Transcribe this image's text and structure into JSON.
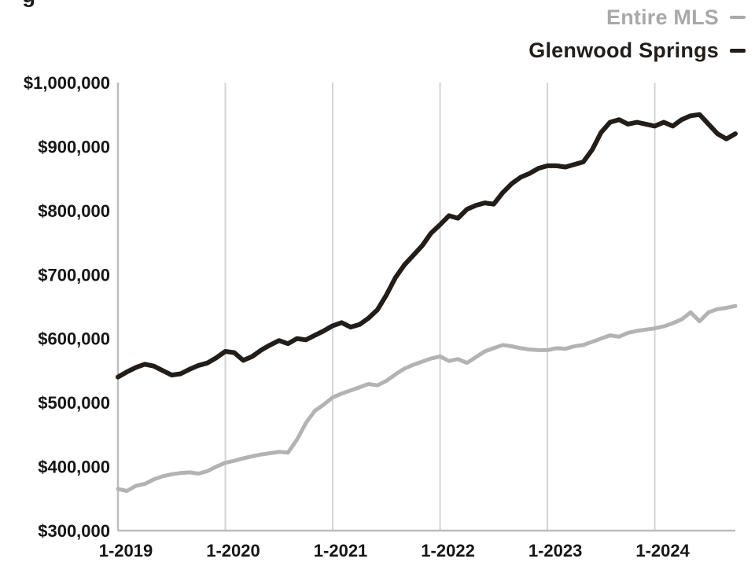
{
  "header": {
    "title_fragment": "g"
  },
  "legend": {
    "position": "top-right"
  },
  "chart_data": {
    "type": "line",
    "title": "",
    "xlabel": "",
    "ylabel": "",
    "x_unit": "month",
    "x_start": "1-2019",
    "x_end": "10-2024",
    "x_tick_labels": [
      "1-2019",
      "1-2020",
      "1-2021",
      "1-2022",
      "1-2023",
      "1-2024"
    ],
    "x_tick_month_indices": [
      0,
      12,
      24,
      36,
      48,
      60
    ],
    "ylim": [
      300000,
      1000000
    ],
    "y_ticks": [
      300000,
      400000,
      500000,
      600000,
      700000,
      800000,
      900000,
      1000000
    ],
    "y_tick_labels": [
      "$300,000",
      "$400,000",
      "$500,000",
      "$600,000",
      "$700,000",
      "$800,000",
      "$900,000",
      "$1,000,000"
    ],
    "grid": "vertical-only",
    "grid_color": "#d4d4d4",
    "axis_color": "#bdbdbd",
    "legend_position": "top-right",
    "series": [
      {
        "name": "Entire MLS",
        "color": "#b3b3b3",
        "stroke_width": 5,
        "values": [
          365000,
          362000,
          370000,
          373000,
          380000,
          385000,
          388000,
          390000,
          391000,
          389000,
          393000,
          400000,
          406000,
          409000,
          413000,
          416000,
          419000,
          421000,
          423000,
          422000,
          442000,
          468000,
          487000,
          497000,
          508000,
          514000,
          519000,
          524000,
          529000,
          527000,
          534000,
          544000,
          553000,
          559000,
          564000,
          569000,
          572000,
          565000,
          568000,
          562000,
          571000,
          580000,
          585000,
          590000,
          588000,
          585000,
          583000,
          582000,
          582000,
          585000,
          584000,
          588000,
          590000,
          595000,
          600000,
          605000,
          603000,
          609000,
          612000,
          614000,
          616000,
          619000,
          624000,
          630000,
          641000,
          627000,
          641000,
          646000,
          648000,
          651000
        ]
      },
      {
        "name": "Glenwood Springs",
        "color": "#231d19",
        "stroke_width": 6,
        "values": [
          540000,
          548000,
          555000,
          560000,
          557000,
          550000,
          543000,
          545000,
          552000,
          558000,
          562000,
          570000,
          580000,
          578000,
          566000,
          572000,
          582000,
          590000,
          597000,
          592000,
          600000,
          598000,
          605000,
          612000,
          620000,
          625000,
          618000,
          622000,
          632000,
          645000,
          668000,
          695000,
          715000,
          730000,
          745000,
          765000,
          778000,
          792000,
          788000,
          802000,
          808000,
          812000,
          810000,
          828000,
          842000,
          852000,
          858000,
          866000,
          870000,
          870000,
          868000,
          872000,
          876000,
          895000,
          922000,
          938000,
          942000,
          935000,
          938000,
          935000,
          932000,
          938000,
          932000,
          942000,
          948000,
          950000,
          935000,
          920000,
          912000,
          920000
        ]
      }
    ]
  }
}
